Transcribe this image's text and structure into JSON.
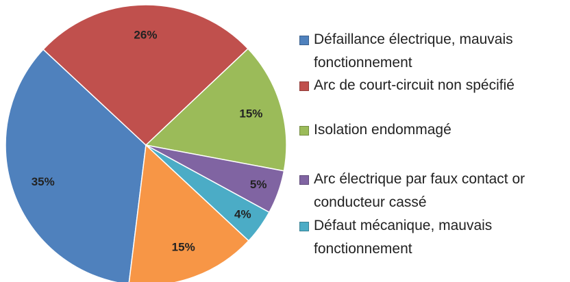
{
  "chart_data": {
    "type": "pie",
    "categories": [
      "Défaillance électrique, mauvais fonctionnement",
      "Arc de court-circuit non spécifié",
      "Isolation endommagé",
      "Arc électrique par faux contact or conducteur cassé",
      "Défaut mécanique, mauvais fonctionnement",
      null
    ],
    "values": [
      35,
      26,
      15,
      5,
      4,
      15
    ],
    "value_labels": [
      "35%",
      "26%",
      "15%",
      "5%",
      "4%",
      "15%"
    ],
    "colors": [
      "#4f81bd",
      "#c0504d",
      "#9bbb59",
      "#8064a2",
      "#4bacc6",
      "#f79646"
    ]
  }
}
